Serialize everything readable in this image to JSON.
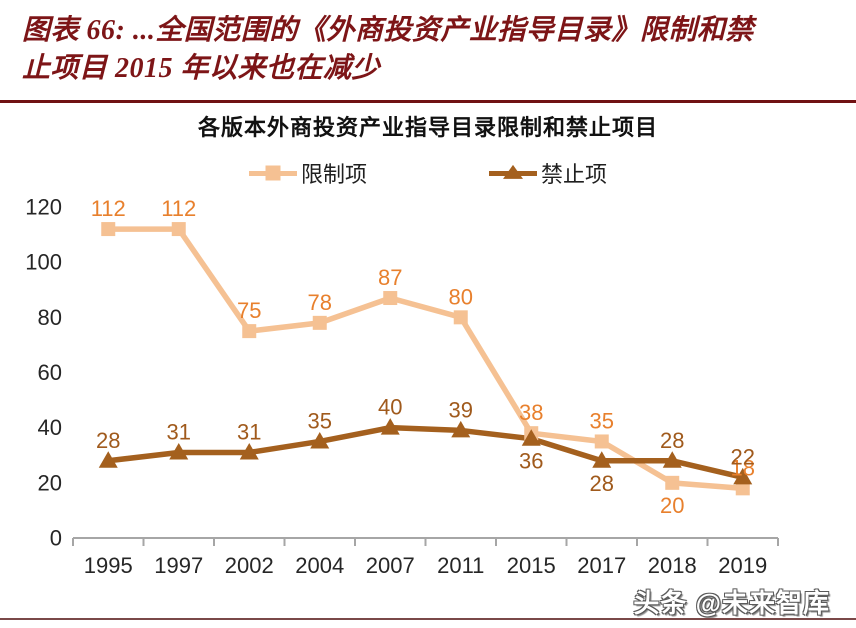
{
  "page": {
    "title_line1": "图表 66: ...全国范围的《外商投资产业指导目录》限制和禁",
    "title_line2": "止项目 2015 年以来也在减少",
    "watermark": "头条 @未来智库"
  },
  "colors": {
    "title_maroon": "#7D1517",
    "top_rule": "#701113",
    "bottom_rule": "#7A4848",
    "axis_gray": "#A6A6A6",
    "axis_text": "#262626"
  },
  "chart_data": {
    "type": "line",
    "title": "各版本外商投资产业指导目录限制和禁止项目",
    "xlabel": "",
    "ylabel": "",
    "categories": [
      "1995",
      "1997",
      "2002",
      "2004",
      "2007",
      "2011",
      "2015",
      "2017",
      "2018",
      "2019"
    ],
    "series": [
      {
        "name": "限制项",
        "values": [
          112,
          112,
          75,
          78,
          87,
          80,
          38,
          35,
          20,
          18
        ],
        "color": "#F5C193",
        "label_color": "#E8802D",
        "marker": "square",
        "label_positions": [
          "above",
          "above",
          "above",
          "above",
          "above",
          "above",
          "above",
          "above",
          "below",
          "above"
        ]
      },
      {
        "name": "禁止项",
        "values": [
          28,
          31,
          31,
          35,
          40,
          39,
          36,
          28,
          28,
          22
        ],
        "color": "#A4601E",
        "label_color": "#A05A1C",
        "marker": "triangle",
        "label_positions": [
          "above",
          "above",
          "above",
          "above",
          "above",
          "above",
          "below",
          "below",
          "above",
          "above"
        ]
      }
    ],
    "y_ticks": [
      0,
      20,
      40,
      60,
      80,
      100,
      120
    ],
    "ylim": [
      0,
      120
    ],
    "grid": false,
    "legend_position": "top"
  }
}
